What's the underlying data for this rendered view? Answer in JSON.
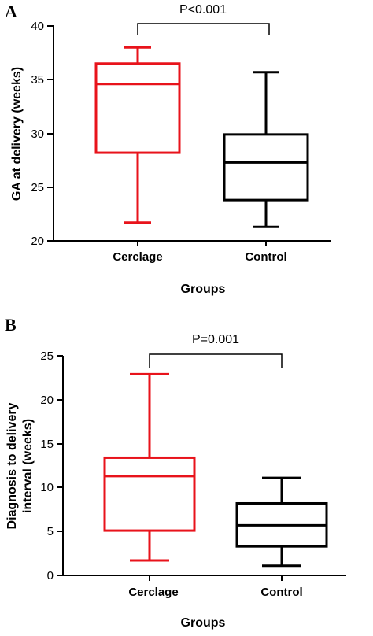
{
  "chart_data": [
    {
      "type": "box",
      "panel": "A",
      "xlabel": "Groups",
      "ylabel": "GA at delivery (weeks)",
      "ylim": [
        20,
        40
      ],
      "yticks": [
        20,
        25,
        30,
        35,
        40
      ],
      "significance": "P<0.001",
      "series": [
        {
          "name": "Cerclage",
          "color": "#e8131b",
          "min": 21.7,
          "q1": 28.2,
          "median": 34.6,
          "q3": 36.5,
          "max": 38.0
        },
        {
          "name": "Control",
          "color": "#000000",
          "min": 21.3,
          "q1": 23.8,
          "median": 27.3,
          "q3": 29.9,
          "max": 35.7
        }
      ]
    },
    {
      "type": "box",
      "panel": "B",
      "xlabel": "Groups",
      "ylabel_lines": [
        "Diagnosis to delivery",
        "interval (weeks)"
      ],
      "ylim": [
        0,
        25
      ],
      "yticks": [
        0,
        5,
        10,
        15,
        20,
        25
      ],
      "significance": "P=0.001",
      "series": [
        {
          "name": "Cerclage",
          "color": "#e8131b",
          "min": 1.7,
          "q1": 5.1,
          "median": 11.3,
          "q3": 13.4,
          "max": 22.9
        },
        {
          "name": "Control",
          "color": "#000000",
          "min": 1.1,
          "q1": 3.3,
          "median": 5.7,
          "q3": 8.2,
          "max": 11.1
        }
      ]
    }
  ]
}
